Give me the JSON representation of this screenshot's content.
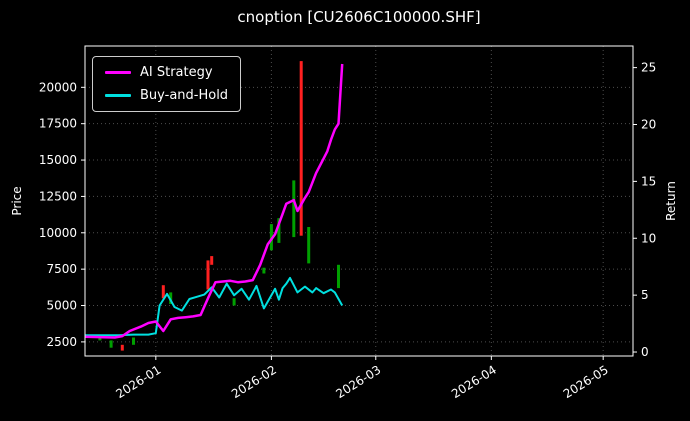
{
  "chart_data": {
    "type": "line",
    "title": "cnoption [CU2606C100000.SHF]",
    "xlabel": "",
    "ylabel_left": "Price",
    "ylabel_right": "Return",
    "x_ticks": [
      "2026-01",
      "2026-02",
      "2026-03",
      "2026-04",
      "2026-05"
    ],
    "y_ticks_left": [
      2500,
      5000,
      7500,
      10000,
      12500,
      15000,
      17500,
      20000
    ],
    "y_ticks_right": [
      0,
      5,
      10,
      15,
      20,
      25
    ],
    "x_range": [
      "2025-12-13",
      "2026-05-09"
    ],
    "y_range_left": [
      1530,
      22840
    ],
    "y_range_right": [
      -0.35,
      26.9
    ],
    "grid": true,
    "legend_position": "upper left",
    "background": "#000000",
    "series": [
      {
        "name": "AI Strategy",
        "color": "#ff00ff",
        "axis": "left",
        "width": 2.5,
        "x": [
          "2025-12-13",
          "2025-12-18",
          "2025-12-21",
          "2025-12-23",
          "2025-12-25",
          "2025-12-28",
          "2025-12-30",
          "2026-01-01",
          "2026-01-03",
          "2026-01-05",
          "2026-01-07",
          "2026-01-09",
          "2026-01-11",
          "2026-01-13",
          "2026-01-15",
          "2026-01-17",
          "2026-01-19",
          "2026-01-21",
          "2026-01-23",
          "2026-01-25",
          "2026-01-27",
          "2026-01-29",
          "2026-01-31",
          "2026-02-02",
          "2026-02-04",
          "2026-02-05",
          "2026-02-07",
          "2026-02-08",
          "2026-02-10",
          "2026-02-11",
          "2026-02-13",
          "2026-02-15",
          "2026-02-16",
          "2026-02-17",
          "2026-02-18",
          "2026-02-19",
          "2026-02-20"
        ],
        "y": [
          2850,
          2820,
          2800,
          2900,
          3250,
          3550,
          3800,
          3900,
          3250,
          4050,
          4150,
          4200,
          4250,
          4350,
          5500,
          6600,
          6650,
          6700,
          6600,
          6650,
          6750,
          7800,
          9200,
          9900,
          11300,
          12000,
          12250,
          11500,
          12400,
          12800,
          14100,
          15100,
          15600,
          16400,
          17100,
          17500,
          21600
        ]
      },
      {
        "name": "Buy-and-Hold",
        "color": "#00e0e0",
        "axis": "left",
        "width": 2,
        "x": [
          "2025-12-13",
          "2025-12-18",
          "2025-12-22",
          "2025-12-26",
          "2025-12-30",
          "2026-01-01",
          "2026-01-02",
          "2026-01-04",
          "2026-01-06",
          "2026-01-08",
          "2026-01-10",
          "2026-01-12",
          "2026-01-14",
          "2026-01-16",
          "2026-01-18",
          "2026-01-20",
          "2026-01-22",
          "2026-01-24",
          "2026-01-26",
          "2026-01-28",
          "2026-01-30",
          "2026-02-01",
          "2026-02-02",
          "2026-02-03",
          "2026-02-04",
          "2026-02-05",
          "2026-02-06",
          "2026-02-08",
          "2026-02-10",
          "2026-02-12",
          "2026-02-13",
          "2026-02-15",
          "2026-02-17",
          "2026-02-18",
          "2026-02-20"
        ],
        "y": [
          2950,
          2950,
          2950,
          3000,
          3000,
          3100,
          5000,
          5800,
          4900,
          4650,
          5450,
          5600,
          5750,
          6250,
          5550,
          6500,
          5700,
          6150,
          5400,
          6350,
          4800,
          5700,
          6150,
          5400,
          6200,
          6500,
          6900,
          5900,
          6300,
          5900,
          6200,
          5850,
          6100,
          5900,
          5000
        ]
      }
    ],
    "bar_colors": {
      "green": "#00a000",
      "red": "#ff2020"
    },
    "bars": [
      {
        "date": "2025-12-17",
        "low": 2600,
        "high": 2950,
        "color": "green"
      },
      {
        "date": "2025-12-20",
        "low": 2100,
        "high": 2600,
        "color": "green"
      },
      {
        "date": "2025-12-23",
        "low": 1900,
        "high": 2300,
        "color": "red"
      },
      {
        "date": "2025-12-26",
        "low": 2300,
        "high": 2800,
        "color": "green"
      },
      {
        "date": "2026-01-03",
        "low": 5500,
        "high": 6400,
        "color": "red"
      },
      {
        "date": "2026-01-05",
        "low": 5100,
        "high": 5900,
        "color": "green"
      },
      {
        "date": "2026-01-15",
        "low": 6100,
        "high": 8100,
        "color": "red"
      },
      {
        "date": "2026-01-16",
        "low": 7800,
        "high": 8400,
        "color": "red"
      },
      {
        "date": "2026-01-22",
        "low": 5000,
        "high": 5500,
        "color": "green"
      },
      {
        "date": "2026-01-30",
        "low": 7200,
        "high": 7600,
        "color": "green"
      },
      {
        "date": "2026-02-01",
        "low": 8800,
        "high": 10600,
        "color": "green"
      },
      {
        "date": "2026-02-03",
        "low": 9300,
        "high": 11000,
        "color": "green"
      },
      {
        "date": "2026-02-07",
        "low": 9700,
        "high": 13600,
        "color": "green"
      },
      {
        "date": "2026-02-09",
        "low": 9800,
        "high": 21800,
        "color": "red"
      },
      {
        "date": "2026-02-11",
        "low": 7900,
        "high": 10400,
        "color": "green"
      },
      {
        "date": "2026-02-19",
        "low": 6200,
        "high": 7800,
        "color": "green"
      }
    ]
  }
}
